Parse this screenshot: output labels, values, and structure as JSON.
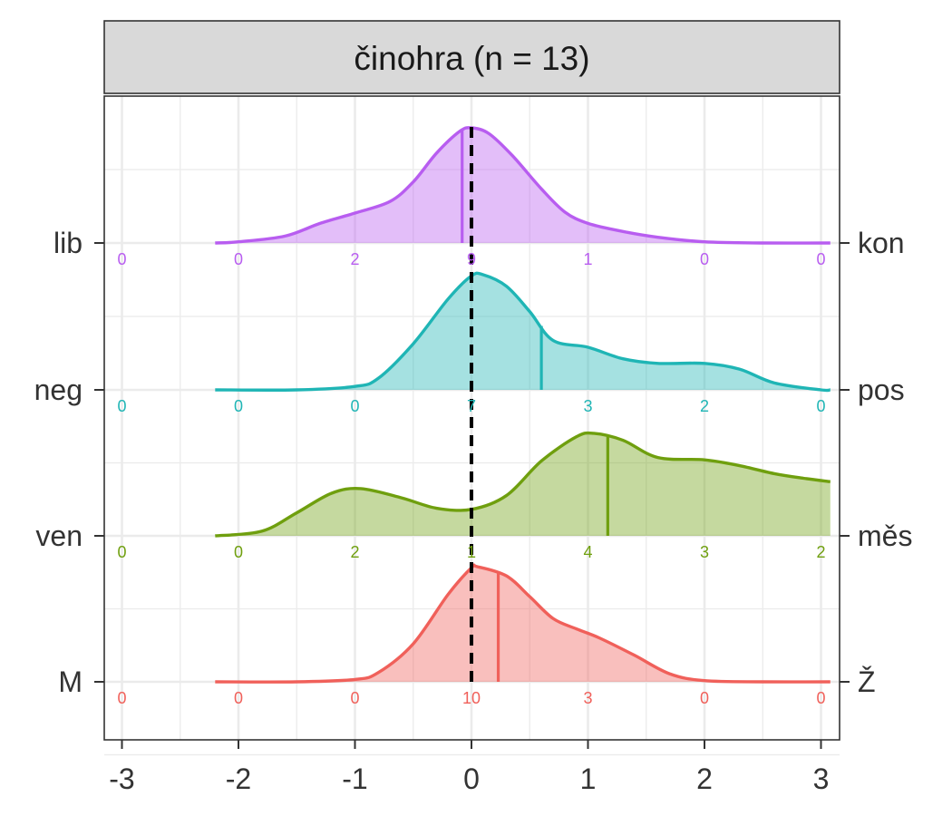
{
  "chart_data": {
    "type": "ridgeline",
    "title": "činohra (n = 13)",
    "xlim": [
      -3.1,
      3.1
    ],
    "x_ticks": [
      -3,
      -2,
      -1,
      0,
      1,
      2,
      3
    ],
    "x_tick_labels": [
      "-3",
      "-2",
      "-1",
      "0",
      "1",
      "2",
      "3"
    ],
    "grid": true,
    "reference_line_x": 0,
    "count_positions": [
      -3,
      -2,
      -1,
      0,
      1,
      2,
      3
    ],
    "series": [
      {
        "left_label": "lib",
        "right_label": "kon",
        "color": "#B85DF0",
        "mean": -0.08,
        "counts": [
          "0",
          "0",
          "2",
          "9",
          "1",
          "0",
          "0"
        ],
        "density": [
          [
            -2.2,
            0.0
          ],
          [
            -2.0,
            0.01
          ],
          [
            -1.6,
            0.06
          ],
          [
            -1.3,
            0.17
          ],
          [
            -1.0,
            0.26
          ],
          [
            -0.7,
            0.36
          ],
          [
            -0.5,
            0.53
          ],
          [
            -0.3,
            0.78
          ],
          [
            -0.1,
            0.97
          ],
          [
            0.0,
            1.0
          ],
          [
            0.15,
            0.95
          ],
          [
            0.35,
            0.76
          ],
          [
            0.6,
            0.47
          ],
          [
            0.8,
            0.27
          ],
          [
            1.0,
            0.17
          ],
          [
            1.3,
            0.1
          ],
          [
            1.6,
            0.05
          ],
          [
            2.0,
            0.01
          ],
          [
            2.5,
            0.0
          ],
          [
            3.08,
            0.0
          ]
        ]
      },
      {
        "left_label": "neg",
        "right_label": "pos",
        "color": "#1FB5B5",
        "mean": 0.6,
        "counts": [
          "0",
          "0",
          "0",
          "7",
          "3",
          "2",
          "0"
        ],
        "density": [
          [
            -2.2,
            0.0
          ],
          [
            -1.5,
            0.0
          ],
          [
            -1.0,
            0.03
          ],
          [
            -0.8,
            0.1
          ],
          [
            -0.5,
            0.4
          ],
          [
            -0.2,
            0.79
          ],
          [
            0.0,
            0.99
          ],
          [
            0.1,
            1.0
          ],
          [
            0.3,
            0.9
          ],
          [
            0.5,
            0.68
          ],
          [
            0.7,
            0.43
          ],
          [
            1.0,
            0.37
          ],
          [
            1.3,
            0.27
          ],
          [
            1.6,
            0.23
          ],
          [
            2.0,
            0.23
          ],
          [
            2.3,
            0.18
          ],
          [
            2.6,
            0.06
          ],
          [
            3.0,
            0.0
          ],
          [
            3.08,
            0.0
          ]
        ]
      },
      {
        "left_label": "ven",
        "right_label": "měs",
        "color": "#6F9F0E",
        "mean": 1.17,
        "counts": [
          "0",
          "0",
          "2",
          "1",
          "4",
          "3",
          "2"
        ],
        "density": [
          [
            -2.2,
            0.0
          ],
          [
            -1.8,
            0.04
          ],
          [
            -1.5,
            0.2
          ],
          [
            -1.2,
            0.37
          ],
          [
            -0.95,
            0.41
          ],
          [
            -0.6,
            0.33
          ],
          [
            -0.3,
            0.24
          ],
          [
            0.0,
            0.23
          ],
          [
            0.3,
            0.35
          ],
          [
            0.6,
            0.65
          ],
          [
            0.9,
            0.86
          ],
          [
            1.05,
            0.89
          ],
          [
            1.3,
            0.83
          ],
          [
            1.6,
            0.68
          ],
          [
            2.0,
            0.66
          ],
          [
            2.3,
            0.61
          ],
          [
            2.6,
            0.54
          ],
          [
            2.85,
            0.5
          ],
          [
            3.08,
            0.47
          ]
        ]
      },
      {
        "left_label": "M",
        "right_label": "Ž",
        "color": "#F0605A",
        "mean": 0.23,
        "counts": [
          "0",
          "0",
          "0",
          "10",
          "3",
          "0",
          "0"
        ],
        "density": [
          [
            -2.2,
            0.0
          ],
          [
            -1.5,
            0.0
          ],
          [
            -1.0,
            0.02
          ],
          [
            -0.8,
            0.08
          ],
          [
            -0.5,
            0.33
          ],
          [
            -0.2,
            0.76
          ],
          [
            0.0,
            0.99
          ],
          [
            0.05,
            1.0
          ],
          [
            0.3,
            0.92
          ],
          [
            0.5,
            0.74
          ],
          [
            0.7,
            0.55
          ],
          [
            0.9,
            0.46
          ],
          [
            1.1,
            0.38
          ],
          [
            1.4,
            0.23
          ],
          [
            1.7,
            0.07
          ],
          [
            2.0,
            0.01
          ],
          [
            2.5,
            0.0
          ],
          [
            3.08,
            0.0
          ]
        ]
      }
    ]
  }
}
